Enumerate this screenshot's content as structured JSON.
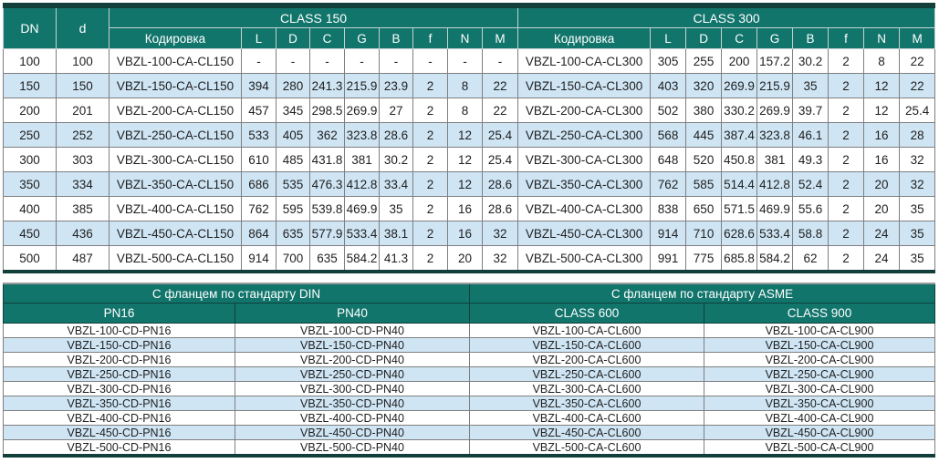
{
  "colors": {
    "header_teal": "#12756c",
    "stripe_blue": "#cfe5f4",
    "heavy_border": "#123f3a",
    "grid_gray": "#7f7f7f",
    "header_grid_light": "#c3d2d0",
    "header_grid_dark": "#0d423c",
    "text_dark": "#1f1f1f"
  },
  "dimensions_table": {
    "col_dn": "DN",
    "col_d": "d",
    "class150_title": "CLASS 150",
    "class300_title": "CLASS 300",
    "code_header": "Кодировка",
    "metric_headers": [
      "L",
      "D",
      "C",
      "G",
      "B",
      "f",
      "N",
      "M"
    ],
    "rows": [
      [
        "100",
        "100",
        "VBZL-100-CA-CL150",
        "-",
        "-",
        "-",
        "-",
        "-",
        "-",
        "-",
        "-",
        "VBZL-100-CA-CL300",
        "305",
        "255",
        "200",
        "157.2",
        "30.2",
        "2",
        "8",
        "22"
      ],
      [
        "150",
        "150",
        "VBZL-150-CA-CL150",
        "394",
        "280",
        "241.3",
        "215.9",
        "23.9",
        "2",
        "8",
        "22",
        "VBZL-150-CA-CL300",
        "403",
        "320",
        "269.9",
        "215.9",
        "35",
        "2",
        "12",
        "22"
      ],
      [
        "200",
        "201",
        "VBZL-200-CA-CL150",
        "457",
        "345",
        "298.5",
        "269.9",
        "27",
        "2",
        "8",
        "22",
        "VBZL-200-CA-CL300",
        "502",
        "380",
        "330.2",
        "269.9",
        "39.7",
        "2",
        "12",
        "25.4"
      ],
      [
        "250",
        "252",
        "VBZL-250-CA-CL150",
        "533",
        "405",
        "362",
        "323.8",
        "28.6",
        "2",
        "12",
        "25.4",
        "VBZL-250-CA-CL300",
        "568",
        "445",
        "387.4",
        "323.8",
        "46.1",
        "2",
        "16",
        "28"
      ],
      [
        "300",
        "303",
        "VBZL-300-CA-CL150",
        "610",
        "485",
        "431.8",
        "381",
        "30.2",
        "2",
        "12",
        "25.4",
        "VBZL-300-CA-CL300",
        "648",
        "520",
        "450.8",
        "381",
        "49.3",
        "2",
        "16",
        "32"
      ],
      [
        "350",
        "334",
        "VBZL-350-CA-CL150",
        "686",
        "535",
        "476.3",
        "412.8",
        "33.4",
        "2",
        "12",
        "28.6",
        "VBZL-350-CA-CL300",
        "762",
        "585",
        "514.4",
        "412.8",
        "52.4",
        "2",
        "20",
        "32"
      ],
      [
        "400",
        "385",
        "VBZL-400-CA-CL150",
        "762",
        "595",
        "539.8",
        "469.9",
        "35",
        "2",
        "16",
        "28.6",
        "VBZL-400-CA-CL300",
        "838",
        "650",
        "571.5",
        "469.9",
        "55.6",
        "2",
        "20",
        "35"
      ],
      [
        "450",
        "436",
        "VBZL-450-CA-CL150",
        "864",
        "635",
        "577.9",
        "533.4",
        "38.1",
        "2",
        "16",
        "32",
        "VBZL-450-CA-CL300",
        "914",
        "710",
        "628.6",
        "533.4",
        "58.8",
        "2",
        "24",
        "35"
      ],
      [
        "500",
        "487",
        "VBZL-500-CA-CL150",
        "914",
        "700",
        "635",
        "584.2",
        "41.3",
        "2",
        "20",
        "32",
        "VBZL-500-CA-CL300",
        "991",
        "775",
        "685.8",
        "584.2",
        "62",
        "2",
        "24",
        "35"
      ]
    ]
  },
  "flange_table": {
    "din_title": "С фланцем по стандарту DIN",
    "asme_title": "С фланцем по стандарту ASME",
    "col_headers": [
      "PN16",
      "PN40",
      "CLASS 600",
      "CLASS 900"
    ],
    "rows": [
      [
        "VBZL-100-CD-PN16",
        "VBZL-100-CD-PN40",
        "VBZL-100-CA-CL600",
        "VBZL-100-CA-CL900"
      ],
      [
        "VBZL-150-CD-PN16",
        "VBZL-150-CD-PN40",
        "VBZL-150-CA-CL600",
        "VBZL-150-CA-CL900"
      ],
      [
        "VBZL-200-CD-PN16",
        "VBZL-200-CD-PN40",
        "VBZL-200-CA-CL600",
        "VBZL-200-CA-CL900"
      ],
      [
        "VBZL-250-CD-PN16",
        "VBZL-250-CD-PN40",
        "VBZL-250-CA-CL600",
        "VBZL-250-CA-CL900"
      ],
      [
        "VBZL-300-CD-PN16",
        "VBZL-300-CD-PN40",
        "VBZL-300-CA-CL600",
        "VBZL-300-CA-CL900"
      ],
      [
        "VBZL-350-CD-PN16",
        "VBZL-350-CD-PN40",
        "VBZL-350-CA-CL600",
        "VBZL-350-CA-CL900"
      ],
      [
        "VBZL-400-CD-PN16",
        "VBZL-400-CD-PN40",
        "VBZL-400-CA-CL600",
        "VBZL-400-CA-CL900"
      ],
      [
        "VBZL-450-CD-PN16",
        "VBZL-450-CD-PN40",
        "VBZL-450-CA-CL600",
        "VBZL-450-CA-CL900"
      ],
      [
        "VBZL-500-CD-PN16",
        "VBZL-500-CD-PN40",
        "VBZL-500-CA-CL600",
        "VBZL-500-CA-CL900"
      ]
    ]
  }
}
